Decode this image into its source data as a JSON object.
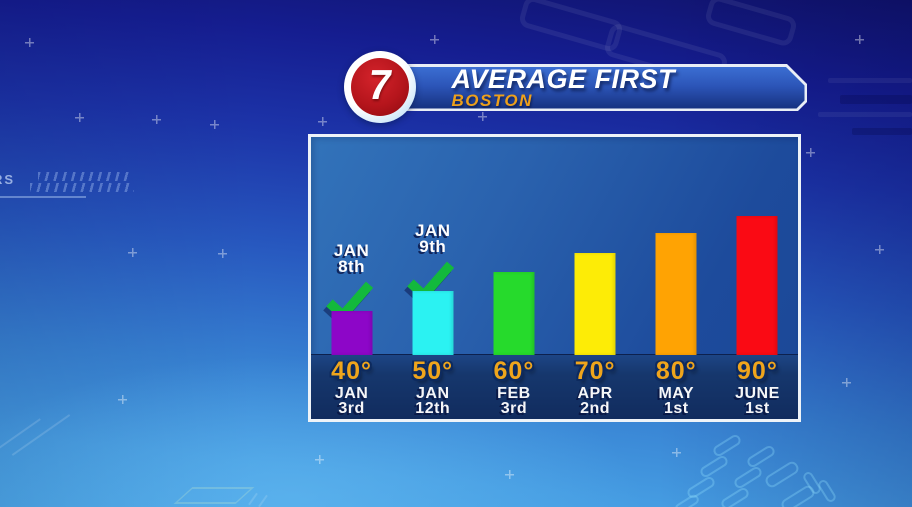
{
  "header": {
    "logo_text": "7",
    "title": "AVERAGE FIRST",
    "subtitle": "BOSTON"
  },
  "background": {
    "watermark_left": "RS"
  },
  "theme": {
    "check_green": "#13b93c",
    "label_gold": "#efa51c",
    "strip_navy": "#16376d",
    "panel_border": "#eef3f8",
    "banner_subtitle_orange": "#eda01b",
    "logo_red": "#b5151c"
  },
  "chart_data": {
    "type": "bar",
    "title": "AVERAGE FIRST",
    "location": "BOSTON",
    "categories": [
      "40°",
      "50°",
      "60°",
      "70°",
      "80°",
      "90°"
    ],
    "values": [
      "JAN 3rd",
      "JAN 12th",
      "FEB 3rd",
      "APR 2nd",
      "MAY 1st",
      "JUNE 1st"
    ],
    "value_lines": [
      [
        "JAN",
        "3rd"
      ],
      [
        "JAN",
        "12th"
      ],
      [
        "FEB",
        "3rd"
      ],
      [
        "APR",
        "2nd"
      ],
      [
        "MAY",
        "1st"
      ],
      [
        "JUNE",
        "1st"
      ]
    ],
    "bar_relative_heights": [
      44,
      64,
      83,
      102,
      122,
      139
    ],
    "bar_colors": [
      "#8d06c8",
      "#2bf2f2",
      "#26da2c",
      "#fdec06",
      "#ffa303",
      "#fa0a14"
    ],
    "annotations": [
      {
        "column": 0,
        "lines": [
          "JAN",
          "8th"
        ],
        "icon": "checkmark"
      },
      {
        "column": 1,
        "lines": [
          "JAN",
          "9th"
        ],
        "icon": "checkmark"
      }
    ],
    "xlabel": "",
    "ylabel": "",
    "legend": "none",
    "grid": false
  }
}
